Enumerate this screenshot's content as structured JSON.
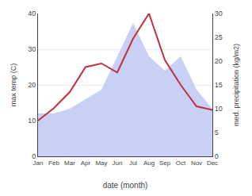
{
  "chart_data": {
    "type": "line",
    "categories": [
      "Jan",
      "Feb",
      "Mar",
      "Apr",
      "May",
      "Jun",
      "Jul",
      "Aug",
      "Sep",
      "Oct",
      "Nov",
      "Dec"
    ],
    "series": [
      {
        "type": "line",
        "color": "#c03040",
        "values": [
          10.0,
          13.5,
          18.0,
          25.0,
          26.0,
          23.5,
          33.0,
          40.0,
          27.0,
          20.0,
          14.0,
          13.0
        ]
      },
      {
        "type": "area",
        "axis": "y2",
        "color": "#c8d0f4",
        "values": [
          9,
          9,
          10,
          12,
          14,
          21,
          28,
          21,
          18,
          21,
          14,
          10
        ]
      }
    ],
    "xlabel": "date (month)",
    "ylabel": "max temp (C)",
    "y2label": "med. precipitation (kg/m2)",
    "ylim": [
      0,
      40
    ],
    "yticks": [
      0,
      10,
      20,
      30,
      40
    ],
    "y2lim": [
      0,
      30
    ],
    "y2ticks": [
      0,
      5,
      10,
      15,
      20,
      25,
      30
    ],
    "grid": true
  }
}
